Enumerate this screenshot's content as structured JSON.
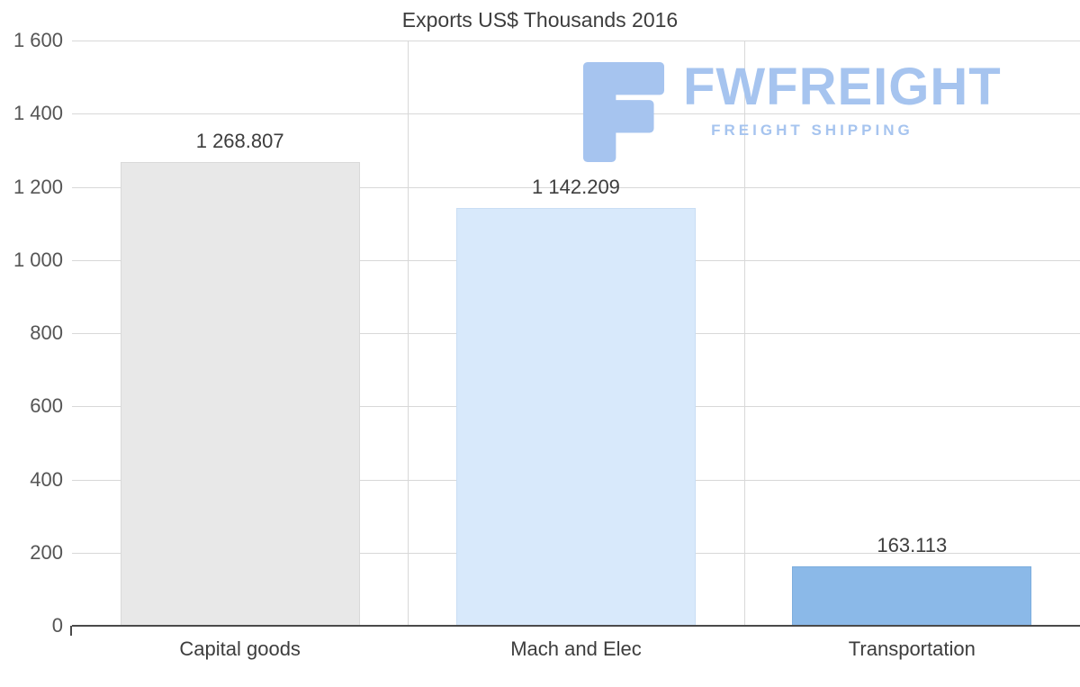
{
  "watermark": {
    "brand": "FWFREIGHT",
    "tagline": "FREIGHT SHIPPING",
    "color": "#a6c4ef"
  },
  "chart_data": {
    "type": "bar",
    "title": "Exports US$ Thousands 2016",
    "categories": [
      "Capital goods",
      "Mach and Elec",
      "Transportation"
    ],
    "values": [
      1268.807,
      1142.209,
      163.113
    ],
    "value_labels": [
      "1 268.807",
      "1 142.209",
      "163.113"
    ],
    "bar_colors": [
      "#e8e8e8",
      "#d8e9fb",
      "#8bb9e8"
    ],
    "bar_borders": [
      "#d9d9d9",
      "#c9def4",
      "#7daede"
    ],
    "xlabel": "",
    "ylabel": "",
    "ylim": [
      0,
      1600
    ],
    "ytick_interval": 200,
    "ytick_labels": [
      "0",
      "200",
      "400",
      "600",
      "800",
      "1 000",
      "1 200",
      "1 400",
      "1 600"
    ],
    "grid": true,
    "legend": "none",
    "background": "#ffffff",
    "gridline_color": "#d8d8d8",
    "axis_color": "#4a4a4a",
    "text_color": "#3d3d3d"
  }
}
